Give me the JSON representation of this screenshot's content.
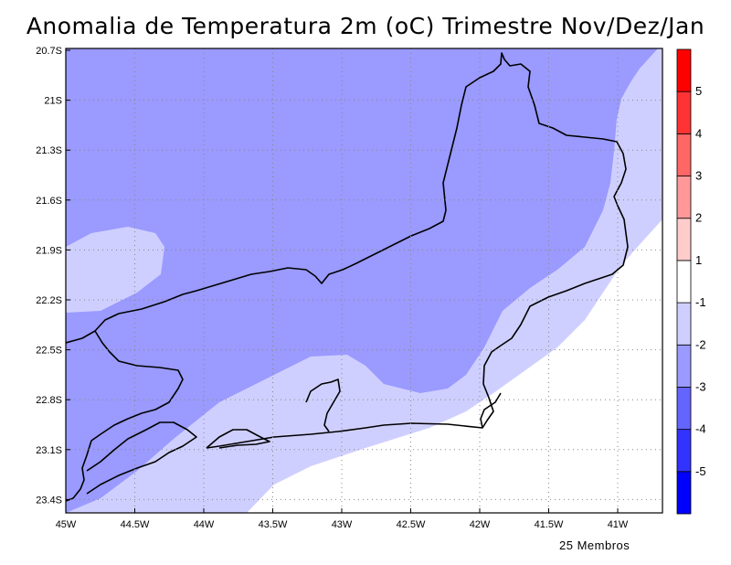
{
  "title": "Anomalia de Temperatura 2m (oC) Trimestre Nov/Dez/Jan",
  "footer": "25 Membros",
  "axes": {
    "x_ticks": [
      "45W",
      "44.5W",
      "44W",
      "43.5W",
      "43W",
      "42.5W",
      "42W",
      "41.5W",
      "41W"
    ],
    "y_ticks": [
      "20.7S",
      "21S",
      "21.3S",
      "21.6S",
      "21.9S",
      "22.2S",
      "22.5S",
      "22.8S",
      "23.1S",
      "23.4S"
    ]
  },
  "colorbar": {
    "colors": [
      "#0000ff",
      "#3333ff",
      "#6464ff",
      "#9a9aff",
      "#cfcfff",
      "#ffffff",
      "#ffcccc",
      "#ff9999",
      "#ff6666",
      "#ff3333",
      "#ff0000"
    ],
    "labels": [
      "-5",
      "-4",
      "-3",
      "-2",
      "-1",
      "1",
      "2",
      "3",
      "4",
      "5"
    ]
  },
  "legend_colors": {
    "minus_2_to_3": "#9a9aff",
    "minus_1_to_2": "#cfcfff",
    "neutral": "#ffffff"
  }
}
